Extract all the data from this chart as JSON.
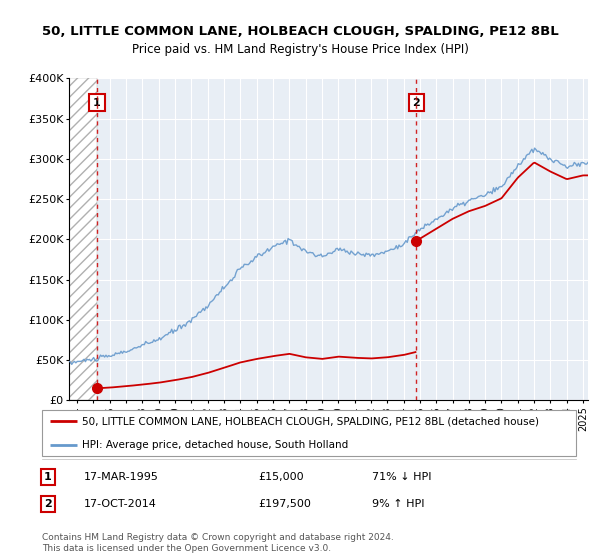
{
  "title": "50, LITTLE COMMON LANE, HOLBEACH CLOUGH, SPALDING, PE12 8BL",
  "subtitle": "Price paid vs. HM Land Registry's House Price Index (HPI)",
  "legend_line1": "50, LITTLE COMMON LANE, HOLBEACH CLOUGH, SPALDING, PE12 8BL (detached house)",
  "legend_line2": "HPI: Average price, detached house, South Holland",
  "sale1_date": "17-MAR-1995",
  "sale1_price": 15000,
  "sale1_label": "71% ↓ HPI",
  "sale2_date": "17-OCT-2014",
  "sale2_price": 197500,
  "sale2_label": "9% ↑ HPI",
  "copyright": "Contains HM Land Registry data © Crown copyright and database right 2024.\nThis data is licensed under the Open Government Licence v3.0.",
  "ylim": [
    0,
    400000
  ],
  "yticks": [
    0,
    50000,
    100000,
    150000,
    200000,
    250000,
    300000,
    350000,
    400000
  ],
  "ytick_labels": [
    "£0",
    "£50K",
    "£100K",
    "£150K",
    "£200K",
    "£250K",
    "£300K",
    "£350K",
    "£400K"
  ],
  "price_paid_color": "#cc0000",
  "hpi_color": "#6699cc",
  "background_color": "#ffffff",
  "plot_bg_color": "#e8eef5",
  "grid_color": "#ffffff",
  "sale1_x": 1995.21,
  "sale2_x": 2014.79,
  "xmin": 1993.5,
  "xmax": 2025.3,
  "hpi_base_values": [
    45000,
    48000,
    51000,
    55000,
    61000,
    68000,
    76000,
    87000,
    100000,
    118000,
    140000,
    163000,
    178000,
    190000,
    200000,
    185000,
    178000,
    188000,
    183000,
    180000,
    185000,
    195000,
    212000,
    225000,
    238000,
    248000,
    255000,
    265000,
    292000,
    312000,
    300000,
    290000,
    295000
  ],
  "hpi_base_years": [
    1993,
    1994,
    1995,
    1996,
    1997,
    1998,
    1999,
    2000,
    2001,
    2002,
    2003,
    2004,
    2005,
    2006,
    2007,
    2008,
    2009,
    2010,
    2011,
    2012,
    2013,
    2014,
    2015,
    2016,
    2017,
    2018,
    2019,
    2020,
    2021,
    2022,
    2023,
    2024,
    2025
  ]
}
